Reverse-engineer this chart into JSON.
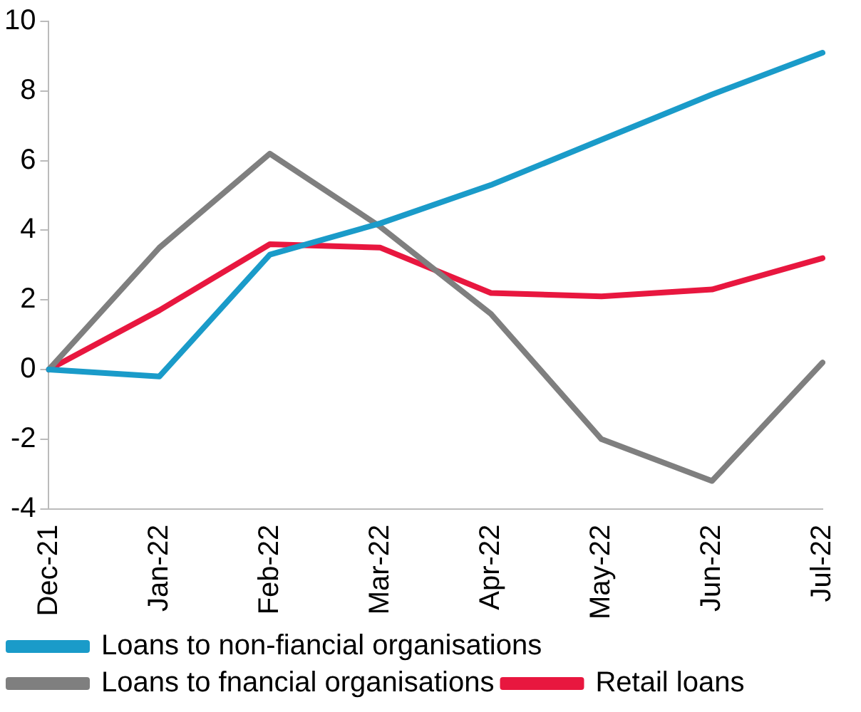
{
  "chart_data": {
    "type": "line",
    "categories": [
      "Dec-21",
      "Jan-22",
      "Feb-22",
      "Mar-22",
      "Apr-22",
      "May-22",
      "Jun-22",
      "Jul-22"
    ],
    "series": [
      {
        "name": "Loans to non-fiancial organisations",
        "color": "#1a9bc9",
        "values": [
          0,
          -0.2,
          3.3,
          4.2,
          5.3,
          6.6,
          7.9,
          9.1
        ]
      },
      {
        "name": "Loans to fnancial organisations",
        "color": "#7f7f7f",
        "values": [
          0,
          3.5,
          6.2,
          4.1,
          1.6,
          -2.0,
          -3.2,
          0.2
        ]
      },
      {
        "name": "Retail loans",
        "color": "#e8173f",
        "values": [
          0,
          1.7,
          3.6,
          3.5,
          2.2,
          2.1,
          2.3,
          3.2
        ]
      }
    ],
    "ylim": [
      -4,
      10
    ],
    "yticks": [
      -4,
      -2,
      0,
      2,
      4,
      6,
      8,
      10
    ],
    "grid": false,
    "legend": "bottom",
    "marker": "none",
    "line_style": "solid"
  }
}
